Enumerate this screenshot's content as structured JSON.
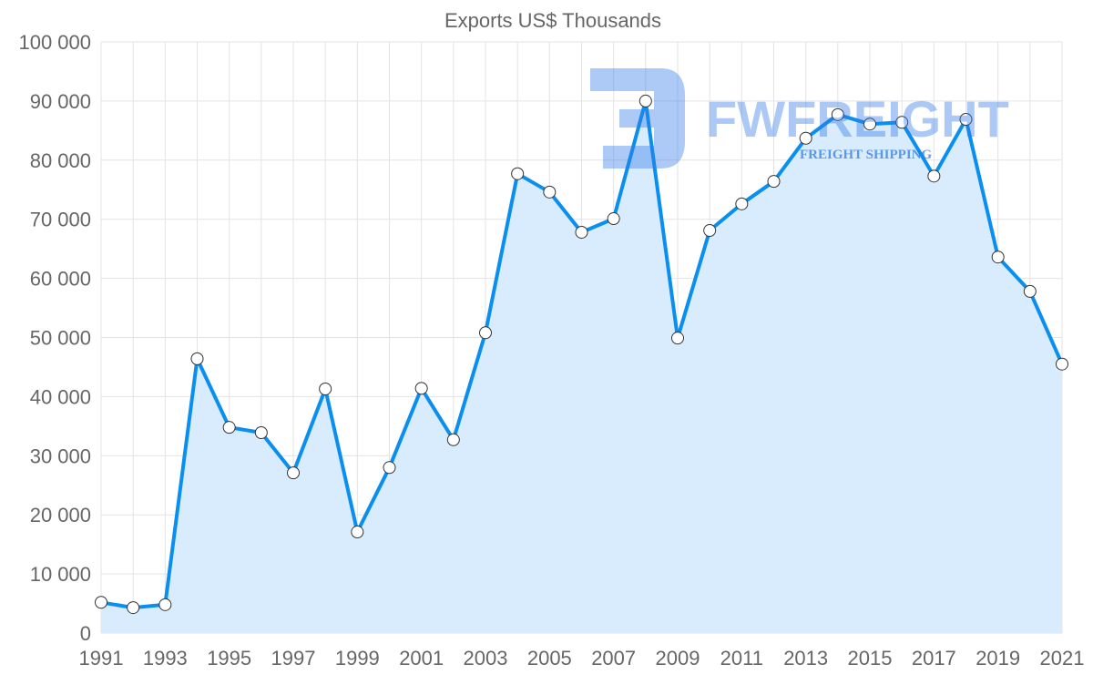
{
  "watermark": {
    "brand": "FWFREIGHT",
    "tagline": "FREIGHT SHIPPING"
  },
  "chart_data": {
    "type": "area",
    "title": "Exports US$ Thousands",
    "xlabel": "",
    "ylabel": "",
    "ylim": [
      0,
      100000
    ],
    "yticks": [
      0,
      10000,
      20000,
      30000,
      40000,
      50000,
      60000,
      70000,
      80000,
      90000,
      100000
    ],
    "ytick_labels": [
      "0",
      "10 000",
      "20 000",
      "30 000",
      "40 000",
      "50 000",
      "60 000",
      "70 000",
      "80 000",
      "90 000",
      "100 000"
    ],
    "xtick_labels": [
      "1991",
      "1993",
      "1995",
      "1997",
      "1999",
      "2001",
      "2003",
      "2005",
      "2007",
      "2009",
      "2011",
      "2013",
      "2015",
      "2017",
      "2019",
      "2021"
    ],
    "grid": true,
    "colors": {
      "line": "#0a8ff0",
      "fill": "#d9ecfd",
      "point": "#ffffff"
    },
    "series": [
      {
        "name": "Exports US$ Thousands",
        "x": [
          1991,
          1992,
          1993,
          1994,
          1995,
          1996,
          1997,
          1998,
          1999,
          2000,
          2001,
          2002,
          2003,
          2004,
          2005,
          2006,
          2007,
          2008,
          2009,
          2010,
          2011,
          2012,
          2013,
          2014,
          2015,
          2016,
          2017,
          2018,
          2019,
          2020,
          2021
        ],
        "values": [
          5200,
          4300,
          4800,
          46400,
          34800,
          33900,
          27100,
          41300,
          17100,
          28000,
          41400,
          32700,
          50800,
          77700,
          74600,
          67800,
          70100,
          90000,
          49900,
          68100,
          72600,
          76400,
          83700,
          87700,
          86100,
          86400,
          77300,
          86900,
          63600,
          57800,
          45500
        ]
      }
    ]
  }
}
